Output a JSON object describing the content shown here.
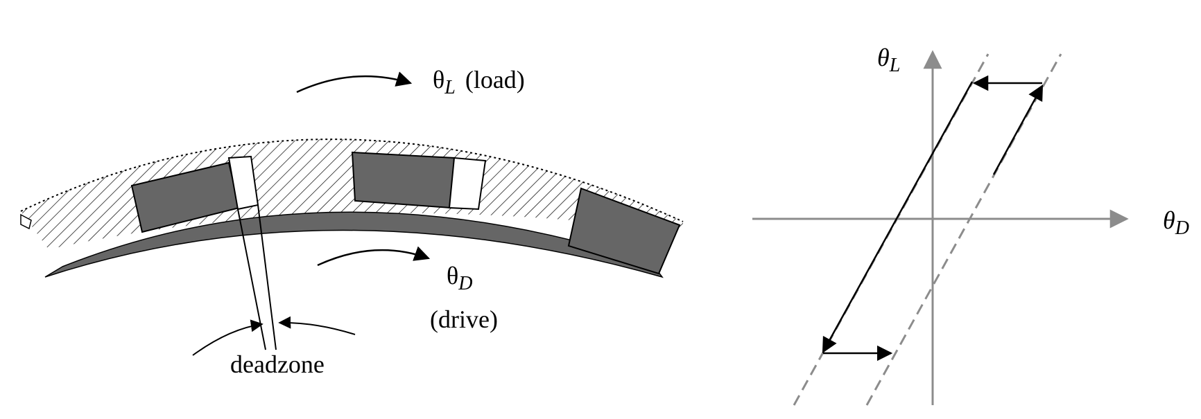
{
  "left_diagram": {
    "load_label": {
      "symbol": "θ",
      "subscript": "L",
      "text": "(load)"
    },
    "drive_label": {
      "symbol": "θ",
      "subscript": "D",
      "text": "(drive)"
    },
    "deadzone_label": "deadzone"
  },
  "right_diagram": {
    "y_axis_label": {
      "symbol": "θ",
      "subscript": "L"
    },
    "x_axis_label": {
      "symbol": "θ",
      "subscript": "D"
    }
  },
  "colors": {
    "gear_fill": "#666666",
    "axis": "#8c8c8c",
    "ink": "#000000"
  }
}
